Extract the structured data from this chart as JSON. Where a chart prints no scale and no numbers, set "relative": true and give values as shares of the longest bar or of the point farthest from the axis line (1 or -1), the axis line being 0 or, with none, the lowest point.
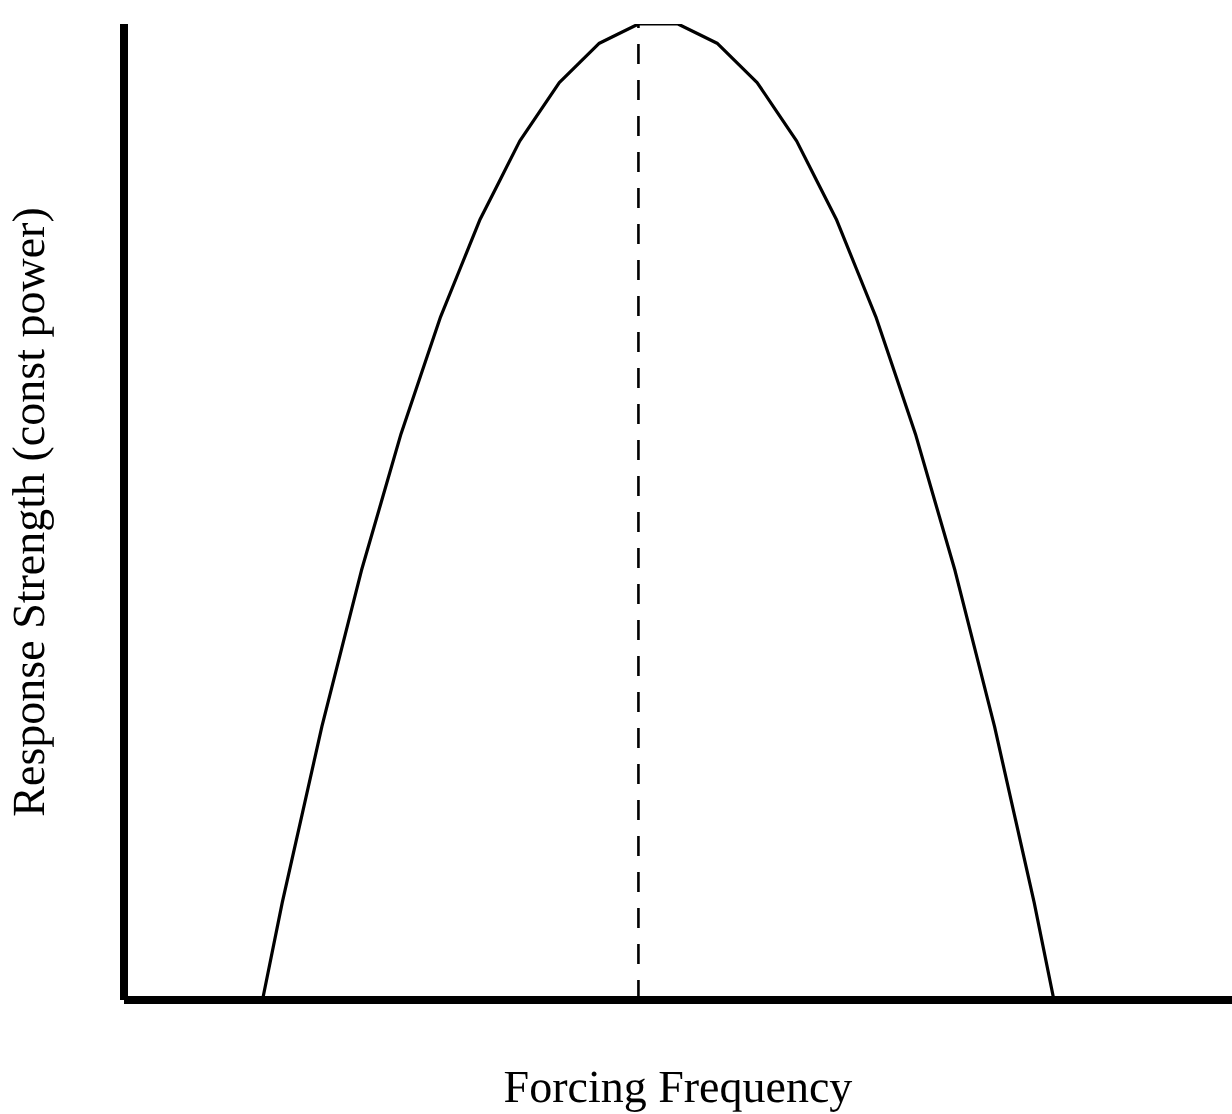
{
  "chart_data": {
    "type": "line",
    "xlabel": "Forcing Frequency",
    "ylabel": "Response Strength (const power)",
    "relative": true,
    "color": "#000000",
    "line_style": "solid",
    "categories": [
      null,
      null,
      null,
      null,
      null,
      null,
      null,
      null,
      null,
      null,
      null,
      null,
      null,
      null,
      null,
      null,
      null,
      null,
      null,
      null,
      null,
      null,
      null,
      null,
      null,
      null,
      null,
      null,
      null,
      null,
      null,
      null,
      null,
      null,
      null,
      null,
      null,
      null,
      null,
      null,
      null,
      null,
      null,
      null,
      null,
      null,
      null,
      null,
      null,
      null,
      null,
      null,
      null,
      null,
      null,
      null,
      null
    ],
    "values": [
      null,
      null,
      null,
      null,
      null,
      null,
      null,
      0,
      0.1,
      0.19,
      0.28,
      0.36,
      0.44,
      0.51,
      0.58,
      0.64,
      0.7,
      0.75,
      0.8,
      0.84,
      0.88,
      0.91,
      0.94,
      0.96,
      0.98,
      0.99,
      1.0,
      1,
      1.0,
      0.99,
      0.98,
      0.96,
      0.94,
      0.91,
      0.88,
      0.84,
      0.8,
      0.75,
      0.7,
      0.64,
      0.58,
      0.51,
      0.44,
      0.36,
      0.28,
      0.19,
      0.1,
      0,
      null,
      null,
      null,
      null,
      null,
      null,
      null,
      null,
      null
    ]
  }
}
